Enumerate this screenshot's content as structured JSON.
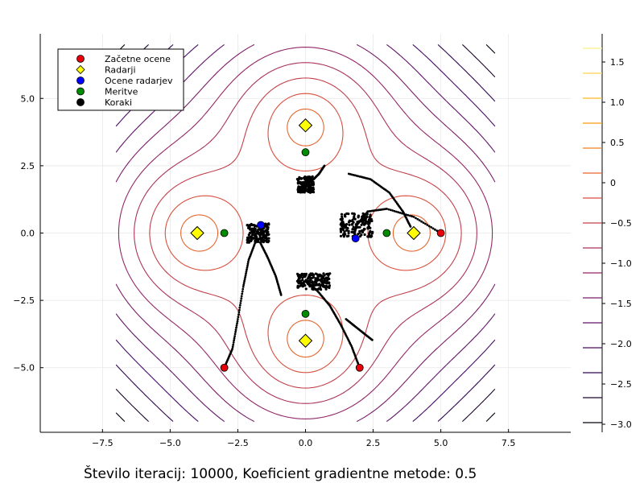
{
  "chart_data": {
    "type": "contour",
    "caption": "Število iteracij: 10000, Koeficient gradientne metode: 0.5",
    "xlim": [
      -9.8,
      9.8
    ],
    "ylim": [
      -7.4,
      7.4
    ],
    "x_ticks": [
      -7.5,
      -5,
      -2.5,
      0,
      2.5,
      5,
      7.5
    ],
    "x_tick_labels": [
      "−7.5",
      "−5.0",
      "−2.5",
      "0.0",
      "2.5",
      "5.0",
      "7.5"
    ],
    "y_ticks": [
      -5,
      -2.5,
      0,
      2.5,
      5
    ],
    "y_tick_labels": [
      "−5.0",
      "−2.5",
      "0.0",
      "2.5",
      "5.0"
    ],
    "grid": true,
    "legend_position": "top-left",
    "colorbar": {
      "range": [
        -3.1,
        1.85
      ],
      "ticks": [
        1.5,
        1.0,
        0.5,
        0,
        -0.5,
        -1.0,
        -1.5,
        -2.0,
        -2.5,
        -3.0
      ],
      "tick_labels": [
        "1.5",
        "1.0",
        "0.5",
        "0",
        "−0.5",
        "−1.0",
        "−1.5",
        "−2.0",
        "−2.5",
        "−3.0"
      ],
      "levels": [
        -2.98,
        -2.67,
        -2.36,
        -2.05,
        -1.74,
        -1.43,
        -1.12,
        -0.81,
        -0.5,
        -0.19,
        0.12,
        0.43,
        0.74,
        1.05,
        1.36,
        1.67
      ],
      "colormap": [
        "#000004",
        "#420a68",
        "#932667",
        "#dd513a",
        "#fca50a",
        "#fcffa4"
      ]
    },
    "contour_domain": [
      -7,
      7
    ],
    "radars": {
      "name": "Radarji",
      "color": "#ffff00",
      "points": [
        [
          -4,
          0
        ],
        [
          4,
          0
        ],
        [
          0,
          4
        ],
        [
          0,
          -4
        ]
      ]
    },
    "initial_estimates": {
      "name": "Začetne ocene",
      "color": "#e8000b",
      "points": [
        [
          -3,
          -5
        ],
        [
          5,
          0
        ],
        [
          2,
          -5
        ]
      ]
    },
    "radar_estimates": {
      "name": "Ocene radarjev",
      "color": "#0000ff",
      "points": [
        [
          -1.65,
          0.3
        ],
        [
          1.85,
          -0.2
        ]
      ]
    },
    "measurements": {
      "name": "Meritve",
      "color": "#008b00",
      "points": [
        [
          -3,
          0
        ],
        [
          3,
          0
        ],
        [
          0,
          3
        ],
        [
          0,
          -3
        ]
      ]
    },
    "steps": {
      "name": "Koraki",
      "color": "#000000",
      "paths": [
        [
          [
            -3,
            -5
          ],
          [
            -2.7,
            -4.3
          ],
          [
            -2.5,
            -3.2
          ],
          [
            -2.3,
            -2.0
          ],
          [
            -2.1,
            -1.0
          ],
          [
            -1.8,
            -0.2
          ]
        ],
        [
          [
            5,
            0
          ],
          [
            4.0,
            0.6
          ],
          [
            3.0,
            0.9
          ],
          [
            2.3,
            0.8
          ],
          [
            1.9,
            0.3
          ],
          [
            1.8,
            0
          ]
        ],
        [
          [
            2,
            -5
          ],
          [
            1.7,
            -4.2
          ],
          [
            1.3,
            -3.4
          ],
          [
            0.9,
            -2.7
          ],
          [
            0.4,
            -2.1
          ],
          [
            0,
            -1.8
          ]
        ],
        [
          [
            0.7,
            2.5
          ],
          [
            0.5,
            2.2
          ],
          [
            0.3,
            2.0
          ],
          [
            0,
            1.8
          ]
        ],
        [
          [
            -0.9,
            -2.3
          ],
          [
            -1.1,
            -1.6
          ],
          [
            -1.4,
            -0.9
          ],
          [
            -1.7,
            -0.3
          ]
        ],
        [
          [
            1.6,
            2.2
          ],
          [
            2.4,
            2.0
          ],
          [
            3.1,
            1.5
          ],
          [
            3.6,
            0.8
          ],
          [
            3.9,
            0.2
          ]
        ],
        [
          [
            1.5,
            -3.2
          ],
          [
            2.0,
            -3.6
          ],
          [
            2.5,
            -4.0
          ]
        ]
      ],
      "clusters": [
        {
          "center": [
            -1.75,
            0
          ],
          "w": 0.8,
          "h": 0.7
        },
        {
          "center": [
            0,
            1.8
          ],
          "w": 0.6,
          "h": 0.6
        },
        {
          "center": [
            1.9,
            0.3
          ],
          "w": 1.2,
          "h": 0.9
        },
        {
          "center": [
            0.3,
            -1.8
          ],
          "w": 1.2,
          "h": 0.6
        }
      ]
    }
  }
}
